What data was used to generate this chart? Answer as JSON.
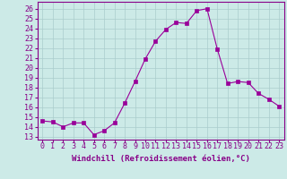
{
  "x": [
    0,
    1,
    2,
    3,
    4,
    5,
    6,
    7,
    8,
    9,
    10,
    11,
    12,
    13,
    14,
    15,
    16,
    17,
    18,
    19,
    20,
    21,
    22,
    23
  ],
  "y": [
    14.6,
    14.5,
    14.0,
    14.4,
    14.4,
    13.2,
    13.6,
    14.4,
    16.4,
    18.6,
    20.9,
    22.7,
    23.9,
    24.6,
    24.5,
    25.8,
    26.0,
    21.9,
    18.4,
    18.6,
    18.5,
    17.4,
    16.8,
    16.1
  ],
  "line_color": "#990099",
  "marker": "s",
  "marker_size": 2.5,
  "bg_color": "#cceae7",
  "grid_color": "#aacccc",
  "xlabel": "Windchill (Refroidissement éolien,°C)",
  "ylabel_ticks": [
    13,
    14,
    15,
    16,
    17,
    18,
    19,
    20,
    21,
    22,
    23,
    24,
    25,
    26
  ],
  "ylim": [
    12.7,
    26.7
  ],
  "xlim": [
    -0.5,
    23.5
  ],
  "tick_color": "#880088",
  "label_fontsize": 6.5,
  "tick_fontsize": 6.0
}
